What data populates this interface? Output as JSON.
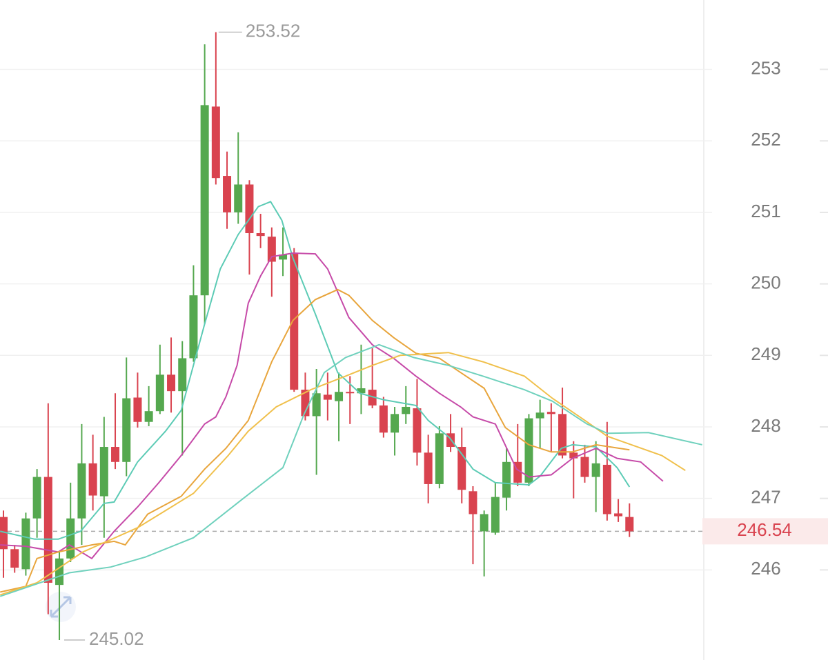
{
  "chart_data": {
    "type": "candlestick",
    "up_color": "#55a84f",
    "down_color": "#d9434f",
    "open": [
      246.74,
      246.29,
      246.01,
      246.72,
      247.3,
      245.79,
      246.16,
      246.72,
      247.49,
      247.03,
      247.72,
      247.51,
      248.41,
      248.07,
      248.22,
      248.73,
      248.5,
      248.96,
      249.84,
      252.48,
      251.51,
      251.0,
      251.39,
      250.71,
      250.66,
      250.34,
      250.42,
      248.52,
      248.15,
      248.45,
      248.36,
      248.49,
      248.47,
      248.52,
      248.3,
      247.92,
      248.18,
      248.26,
      247.64,
      247.2,
      247.91,
      247.72,
      247.1,
      246.54,
      246.52,
      247.01,
      247.51,
      247.22,
      248.12,
      248.21,
      248.18,
      247.64,
      247.58,
      247.3,
      247.47,
      246.79,
      246.74
    ],
    "high": [
      246.83,
      246.35,
      246.8,
      247.41,
      248.33,
      246.25,
      247.22,
      248.04,
      247.89,
      248.14,
      248.47,
      248.97,
      248.76,
      248.57,
      249.15,
      249.25,
      249.2,
      250.26,
      253.35,
      253.52,
      251.85,
      252.12,
      251.45,
      250.98,
      250.79,
      250.79,
      250.5,
      248.76,
      248.81,
      248.76,
      248.76,
      248.71,
      249.15,
      249.1,
      248.42,
      248.28,
      248.57,
      248.67,
      247.89,
      248.01,
      248.18,
      247.99,
      247.17,
      246.83,
      247.22,
      247.7,
      248.04,
      248.18,
      248.38,
      248.33,
      248.55,
      247.8,
      247.75,
      247.8,
      248.07,
      246.99,
      246.93
    ],
    "low": [
      245.89,
      245.96,
      245.92,
      246.45,
      245.38,
      245.02,
      246.11,
      246.35,
      246.83,
      246.45,
      247.41,
      247.31,
      247.99,
      248.01,
      248.18,
      248.2,
      247.6,
      248.91,
      249.44,
      251.39,
      250.77,
      250.84,
      250.13,
      250.5,
      249.82,
      250.11,
      248.49,
      248.09,
      247.33,
      248.09,
      247.8,
      248.04,
      248.18,
      248.26,
      247.85,
      247.6,
      248.04,
      247.46,
      246.93,
      247.14,
      247.65,
      246.93,
      246.08,
      245.91,
      246.49,
      246.83,
      247.17,
      247.17,
      247.7,
      247.65,
      247.56,
      247.0,
      247.22,
      246.81,
      246.69,
      246.67,
      246.46
    ],
    "close": [
      246.29,
      246.03,
      246.72,
      247.3,
      245.82,
      246.16,
      246.72,
      247.49,
      247.04,
      247.72,
      247.51,
      248.4,
      248.07,
      248.22,
      248.73,
      248.5,
      248.96,
      249.84,
      252.5,
      251.48,
      251.0,
      251.39,
      250.71,
      250.67,
      250.31,
      250.41,
      248.52,
      248.15,
      248.47,
      248.38,
      248.49,
      248.47,
      248.54,
      248.3,
      247.92,
      248.18,
      248.28,
      247.64,
      247.2,
      247.91,
      247.72,
      247.12,
      246.78,
      246.78,
      247.02,
      247.51,
      247.22,
      248.12,
      248.2,
      248.18,
      247.6,
      247.56,
      247.3,
      247.49,
      246.78,
      246.75,
      246.54
    ],
    "series": [
      {
        "color": "#5ccbb5",
        "x": [
          -0.3,
          2.8,
          4.9,
          6.9,
          9.0,
          9.9,
          12.0,
          14.5,
          15.9,
          18.0,
          19.4,
          21.0,
          22.8,
          23.9,
          24.9,
          25.9,
          27.9,
          29.9,
          31.9,
          34.0,
          36.9,
          38.0,
          39.9,
          42.0,
          44.0,
          47.0,
          48.0,
          49.9,
          50.9,
          53.0,
          54.9,
          56.0
        ],
        "values": [
          246.54,
          246.43,
          246.43,
          246.54,
          246.93,
          246.95,
          247.51,
          247.94,
          248.23,
          249.44,
          250.21,
          250.69,
          251.08,
          251.15,
          250.89,
          250.36,
          249.58,
          248.76,
          248.47,
          248.38,
          248.3,
          248.09,
          247.85,
          247.41,
          247.22,
          247.19,
          247.31,
          247.7,
          247.75,
          247.72,
          247.43,
          247.16
        ]
      },
      {
        "color": "#c64aa8",
        "x": [
          -0.3,
          2.0,
          4.9,
          5.9,
          7.9,
          9.9,
          12.0,
          13.9,
          15.9,
          18.0,
          19.0,
          19.9,
          20.9,
          21.9,
          23.0,
          24.0,
          25.9,
          27.9,
          29.0,
          30.9,
          33.0,
          34.9,
          36.9,
          39.0,
          40.9,
          42.0,
          44.0,
          45.9,
          47.0,
          49.0,
          50.9,
          53.0,
          54.9,
          57.0,
          59.0
        ],
        "values": [
          246.35,
          246.33,
          246.25,
          246.35,
          246.16,
          246.54,
          246.88,
          247.22,
          247.6,
          248.04,
          248.14,
          248.42,
          248.86,
          249.73,
          250.11,
          250.38,
          250.43,
          250.42,
          250.21,
          249.53,
          249.15,
          248.96,
          248.71,
          248.47,
          248.28,
          248.14,
          248.04,
          247.41,
          247.3,
          247.33,
          247.56,
          247.7,
          247.56,
          247.51,
          247.24
        ]
      },
      {
        "color": "#e8a53c",
        "x": [
          -0.3,
          2.0,
          3.0,
          4.9,
          7.9,
          9.9,
          10.9,
          12.9,
          15.9,
          18.0,
          19.9,
          21.9,
          24.0,
          25.9,
          27.9,
          29.9,
          30.9,
          33.0,
          34.9,
          36.9,
          39.0,
          40.9,
          43.0,
          44.9,
          47.0,
          49.0,
          50.9,
          53.0,
          56.0
        ],
        "values": [
          245.69,
          245.77,
          246.16,
          246.25,
          246.35,
          246.4,
          246.35,
          246.78,
          247.03,
          247.41,
          247.7,
          248.09,
          248.91,
          249.49,
          249.78,
          249.92,
          249.84,
          249.49,
          249.25,
          249.03,
          248.96,
          248.76,
          248.54,
          247.99,
          247.75,
          247.65,
          247.65,
          247.75,
          247.68
        ]
      },
      {
        "color": "#f0c04c",
        "x": [
          -0.3,
          3.0,
          7.1,
          12.0,
          17.0,
          20.1,
          21.9,
          24.4,
          27.5,
          30.6,
          33.0,
          35.5,
          39.8,
          42.9,
          46.6,
          49.1,
          52.2,
          54.0,
          58.9,
          61.0
        ],
        "values": [
          245.65,
          245.82,
          246.25,
          246.59,
          247.07,
          247.6,
          247.94,
          248.28,
          248.52,
          248.71,
          248.86,
          249.0,
          249.04,
          248.91,
          248.71,
          248.4,
          248.07,
          247.87,
          247.6,
          247.39
        ]
      },
      {
        "color": "#6fd1bd",
        "x": [
          -0.3,
          5.9,
          9.6,
          12.7,
          17.0,
          21.3,
          25.0,
          26.9,
          28.7,
          30.6,
          33.6,
          36.7,
          39.8,
          42.9,
          46.6,
          49.1,
          52.2,
          54.0,
          57.7,
          62.5
        ],
        "values": [
          245.63,
          245.96,
          246.04,
          246.18,
          246.45,
          246.98,
          247.43,
          248.18,
          248.76,
          248.97,
          249.15,
          248.97,
          248.86,
          248.71,
          248.52,
          248.36,
          248.04,
          247.91,
          247.92,
          247.75
        ]
      }
    ],
    "max_price": 253.52,
    "min_price": 245.02,
    "last_price": 246.54,
    "xlim": [
      -0.31,
      62.65
    ],
    "ylim": [
      244.74,
      253.97
    ],
    "yticks": [
      246,
      247,
      248,
      249,
      250,
      251,
      252,
      253
    ],
    "grid": true
  }
}
